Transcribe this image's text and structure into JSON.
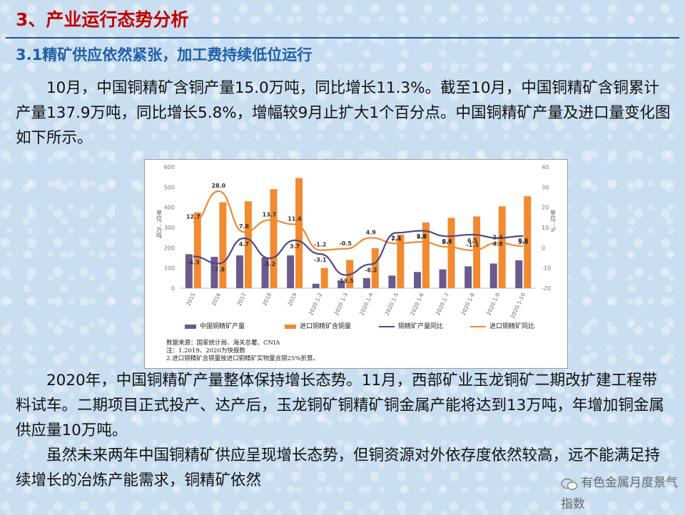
{
  "slide": {
    "title": "3、产业运行态势分析",
    "section": "3.1精矿供应依然紧张，加工费持续低位运行",
    "para1": "10月，中国铜精矿含铜产量15.0万吨，同比增长11.3%。截至10月，中国铜精矿含铜累计产量137.9万吨，同比增长5.8%，增幅较9月止扩大1个百分点。中国铜精矿产量及进口量变化图如下所示。",
    "para2": "2020年，中国铜精矿产量整体保持增长态势。11月，西部矿业玉龙铜矿二期改扩建工程带料试车。二期项目正式投产、达产后，玉龙铜矿铜精矿铜金属产能将达到13万吨，年增加铜金属供应量10万吨。",
    "para3": "虽然未来两年中国铜精矿供应呈现增长态势，但铜资源对外依存度依然较高，远不能满足持续增长的冶炼产能需求，铜精矿依然",
    "watermark": "有色金属月度景气指数"
  },
  "chart_data": {
    "type": "bar",
    "categories": [
      "2015",
      "2016",
      "2017",
      "2018",
      "2019",
      "2020.1-2",
      "2020.1-3",
      "2020.1-4",
      "2020.1-5",
      "2020.1-6",
      "2020.1-7",
      "2020.1-8",
      "2020.1-9",
      "2020.1-10"
    ],
    "left_axis": {
      "label": "单位：万吨",
      "ylim": [
        0,
        600
      ],
      "ticks": [
        "0",
        "100",
        "200",
        "300",
        "400",
        "500",
        "600"
      ]
    },
    "right_axis": {
      "label": "单位：%",
      "ylim": [
        -20,
        40
      ],
      "ticks": [
        "-20",
        "-10",
        "0",
        "10",
        "20",
        "30",
        "40"
      ]
    },
    "series": [
      {
        "name": "中国铜精矿产量",
        "kind": "bar",
        "axis": "left",
        "color": "#6b5a8e",
        "values": [
          168,
          155,
          162,
          152,
          162,
          22,
          38,
          50,
          62,
          80,
          93,
          108,
          122,
          138
        ]
      },
      {
        "name": "进口铜精矿含铜量",
        "kind": "bar",
        "axis": "left",
        "color": "#f28a30",
        "values": [
          375,
          425,
          430,
          490,
          545,
          100,
          140,
          198,
          265,
          325,
          348,
          355,
          405,
          455
        ]
      },
      {
        "name": "铜精矿产量同比",
        "kind": "line",
        "axis": "right",
        "color": "#4a4a8c",
        "values": [
          -4.3,
          -7.8,
          4.7,
          -5.2,
          3.7,
          -3.1,
          -13.5,
          -8.2,
          7.4,
          8.4,
          5.7,
          6.5,
          4.8,
          5.8
        ],
        "labels": [
          "-4.3",
          "-7.8",
          "4.7",
          "-5.2",
          "3.7",
          "-3.1",
          "-13.5",
          "-8.2",
          "7.4",
          "8.4",
          "5.7",
          "6.5",
          "4.8",
          "5.8"
        ]
      },
      {
        "name": "进口铜精矿同比",
        "kind": "line",
        "axis": "right",
        "color": "#f28a30",
        "values": [
          12.7,
          28.0,
          7.8,
          13.7,
          11.6,
          -1.2,
          -0.5,
          4.9,
          2.1,
          2.9,
          0.4,
          -1.3,
          2.4,
          0.8
        ],
        "labels": [
          "12.7",
          "28.0",
          "7.8",
          "13.7",
          "11.6",
          "-1.2",
          "-0.5",
          "4.9",
          "2.1",
          "2.9",
          "0.4",
          "-1.3",
          "2.4",
          "0.8"
        ]
      }
    ],
    "notes": [
      "数据来源：国家统计局、海关总署、CNIA",
      "注：1.2019、2020为快报数",
      "2.进口铜精矿含铜量按进口铜精矿实物量含铜25%折算。"
    ],
    "grid": false,
    "legend": "bottom"
  }
}
